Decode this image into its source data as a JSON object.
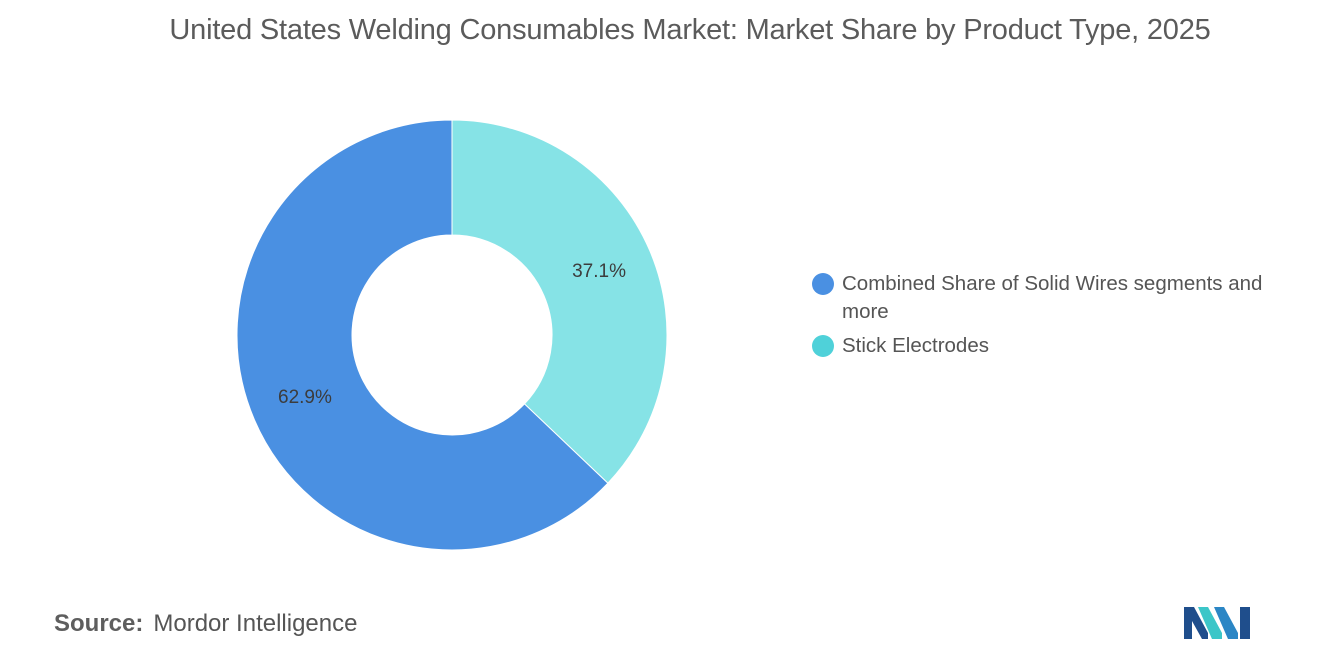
{
  "title": "United States Welding Consumables Market: Market Share by Product Type, 2025",
  "chart_data": {
    "type": "pie",
    "style": "donut",
    "title": "United States Welding Consumables Market: Market Share by Product Type, 2025",
    "legend_position": "right",
    "slices": [
      {
        "name": "Stick Electrodes",
        "value": 37.1,
        "label": "37.1%",
        "color": "#86e3e6"
      },
      {
        "name": "Combined Share of Solid Wires segments and more",
        "value": 62.9,
        "label": "62.9%",
        "color": "#4a90e2"
      }
    ]
  },
  "legend": {
    "items": [
      {
        "label": "Combined Share of Solid Wires segments and more",
        "color": "#4a90e2"
      },
      {
        "label": "Stick Electrodes",
        "color": "#4fd1d9"
      }
    ]
  },
  "source": {
    "label": "Source:",
    "value": "Mordor Intelligence"
  },
  "logo": {
    "icon": "mordor-intelligence-logo-icon",
    "colors": [
      "#1f4e8c",
      "#3cc6c8"
    ]
  }
}
